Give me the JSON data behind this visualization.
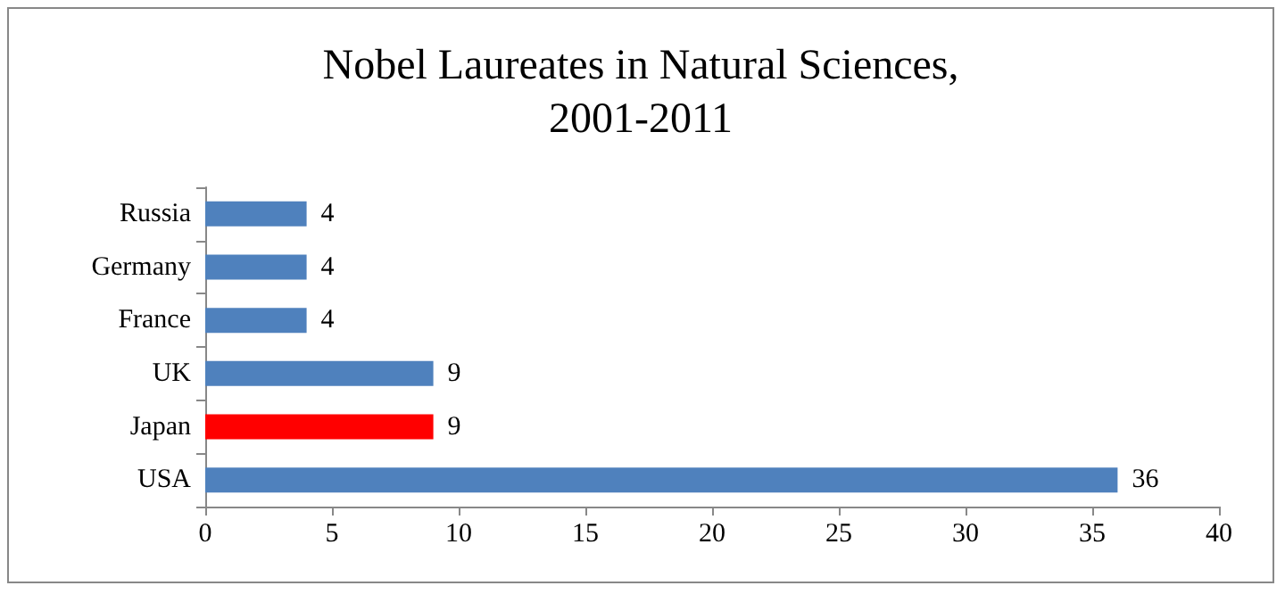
{
  "chart_data": {
    "type": "bar",
    "orientation": "horizontal",
    "title": "Nobel Laureates in Natural Sciences,\n2001-2011",
    "categories": [
      "Russia",
      "Germany",
      "France",
      "UK",
      "Japan",
      "USA"
    ],
    "values": [
      4,
      4,
      4,
      9,
      9,
      36
    ],
    "colors": [
      "#4f81bd",
      "#4f81bd",
      "#4f81bd",
      "#4f81bd",
      "#ff0000",
      "#4f81bd"
    ],
    "xlim": [
      0,
      40
    ],
    "xticks": [
      0,
      5,
      10,
      15,
      20,
      25,
      30,
      35,
      40
    ],
    "grid": false,
    "data_labels": true
  }
}
